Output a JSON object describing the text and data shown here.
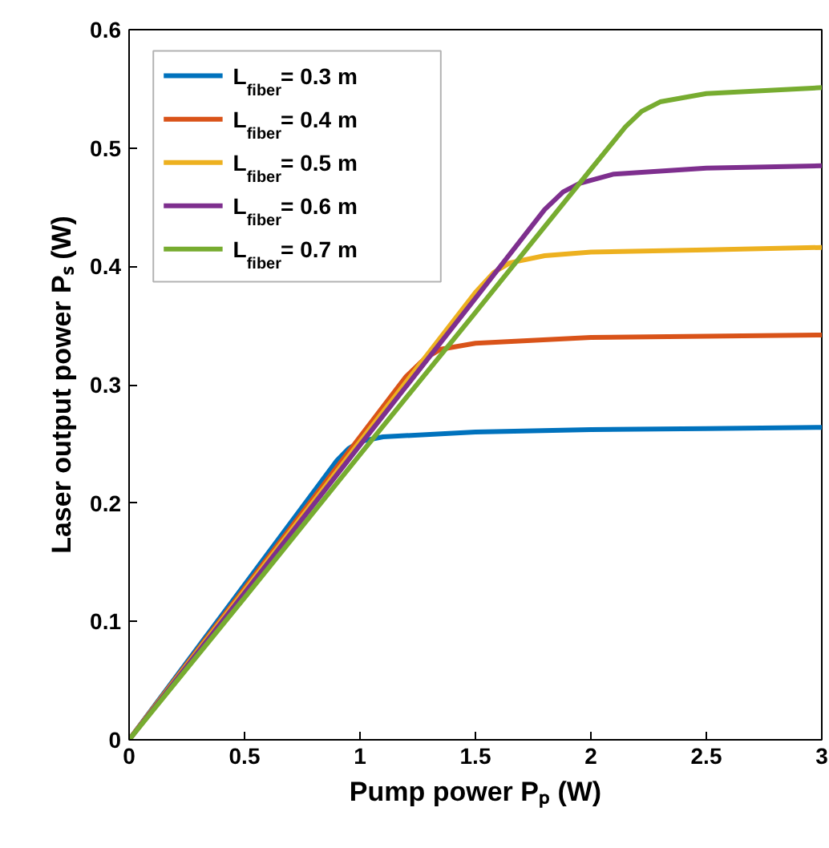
{
  "chart_data": {
    "type": "line",
    "xlabel": "Pump power Pₚ (W)",
    "ylabel": "Laser output power Pₛ (W)",
    "xlim": [
      0,
      3
    ],
    "ylim": [
      0,
      0.6
    ],
    "xticks": [
      0,
      0.5,
      1,
      1.5,
      2,
      2.5,
      3
    ],
    "yticks": [
      0,
      0.1,
      0.2,
      0.3,
      0.4,
      0.5,
      0.6
    ],
    "grid": false,
    "legend": "top left",
    "line_style": "solid",
    "marker": "none",
    "series": [
      {
        "name": "L$_{fiber}$ = 0.3 m",
        "color": "#0072bd",
        "x": [
          0,
          0.5,
          0.9,
          0.95,
          1.0,
          1.1,
          1.5,
          2,
          2.5,
          3
        ],
        "values": [
          0,
          0.131,
          0.236,
          0.246,
          0.252,
          0.256,
          0.26,
          0.262,
          0.263,
          0.264
        ]
      },
      {
        "name": "L$_{fiber}$ = 0.4 m",
        "color": "#d95319",
        "x": [
          0,
          0.5,
          1.0,
          1.2,
          1.28,
          1.35,
          1.5,
          2,
          2.5,
          3
        ],
        "values": [
          0,
          0.128,
          0.256,
          0.307,
          0.322,
          0.33,
          0.335,
          0.34,
          0.341,
          0.342
        ]
      },
      {
        "name": "L$_{fiber}$ = 0.5 m",
        "color": "#edb120",
        "x": [
          0,
          0.5,
          1.0,
          1.5,
          1.58,
          1.65,
          1.8,
          2,
          2.5,
          3
        ],
        "values": [
          0,
          0.126,
          0.252,
          0.378,
          0.395,
          0.403,
          0.409,
          0.412,
          0.414,
          0.416
        ]
      },
      {
        "name": "L$_{fiber}$ = 0.6 m",
        "color": "#7e2f8e",
        "x": [
          0,
          0.5,
          1.0,
          1.5,
          1.8,
          1.88,
          1.95,
          2.1,
          2.5,
          3
        ],
        "values": [
          0,
          0.124,
          0.249,
          0.373,
          0.448,
          0.463,
          0.47,
          0.478,
          0.483,
          0.485
        ]
      },
      {
        "name": "L$_{fiber}$ = 0.7 m",
        "color": "#77ac30",
        "x": [
          0,
          0.5,
          1.0,
          1.5,
          2.0,
          2.15,
          2.22,
          2.3,
          2.5,
          3
        ],
        "values": [
          0,
          0.12,
          0.241,
          0.361,
          0.482,
          0.518,
          0.531,
          0.539,
          0.546,
          0.551
        ]
      }
    ]
  }
}
